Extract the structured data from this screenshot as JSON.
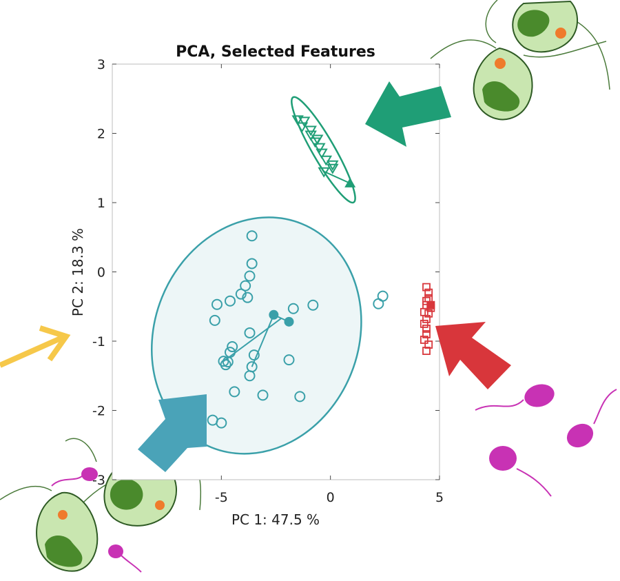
{
  "chart_data": {
    "type": "scatter",
    "title": "PCA, Selected Features",
    "xlabel": "PC 1: 47.5 %",
    "ylabel": "PC 2: 18.3 %",
    "xlim": [
      -10,
      5
    ],
    "ylim": [
      -3,
      3
    ],
    "xticks": [
      "-5",
      "0",
      "5"
    ],
    "yticks": [
      "3",
      "2",
      "1",
      "0",
      "-1",
      "-2",
      "-3"
    ],
    "grid": false,
    "colors": {
      "teal": "#3aa0a9",
      "green": "#1f9e76",
      "red": "#d8363b",
      "cell": "#c9e6b0",
      "chloroplast": "#4a8a2c",
      "eyespot": "#ef7b2c",
      "sperm": "#c832b4",
      "yellow": "#f6c84a",
      "arrow_blue": "#4aa3b8"
    },
    "series": [
      {
        "marker": "circle",
        "color": "#3aa0a9",
        "x": [
          -3.6,
          -3.6,
          -3.7,
          -3.9,
          -4.1,
          -4.6,
          -5.2,
          -5.3,
          -3.8,
          -1.7,
          -0.8,
          -3.7,
          -4.5,
          -4.9,
          -4.6,
          -4.7,
          -4.8,
          -3.6,
          -3.7,
          -3.5,
          -4.4,
          -3.1,
          -1.9,
          -1.4,
          -5.4,
          -5.0,
          2.2,
          2.4
        ],
        "y": [
          0.52,
          0.12,
          -0.06,
          -0.2,
          -0.32,
          -0.42,
          -0.47,
          -0.7,
          -0.37,
          -0.53,
          -0.48,
          -0.88,
          -1.08,
          -1.29,
          -1.16,
          -1.3,
          -1.34,
          -1.37,
          -1.5,
          -1.2,
          -1.73,
          -1.78,
          -1.27,
          -1.8,
          -2.14,
          -2.18,
          -0.46,
          -0.35
        ],
        "centroids": [
          {
            "x": -2.6,
            "y": -0.62
          },
          {
            "x": -1.9,
            "y": -0.72
          }
        ]
      },
      {
        "marker": "triangle",
        "color": "#1f9e76",
        "x": [
          -1.5,
          -1.2,
          -1.3,
          -0.9,
          -0.9,
          -0.6,
          -0.7,
          -0.5,
          -0.4,
          -0.2,
          0.1,
          -0.3,
          0.1
        ],
        "y": [
          2.2,
          2.18,
          2.1,
          2.05,
          1.98,
          1.92,
          1.88,
          1.8,
          1.72,
          1.62,
          1.55,
          1.45,
          1.5
        ],
        "centroid": {
          "x": 0.9,
          "y": 1.28
        }
      },
      {
        "marker": "square",
        "color": "#d8363b",
        "x": [
          4.4,
          4.5,
          4.5,
          4.4,
          4.3,
          4.6,
          4.5,
          4.4,
          4.3,
          4.4,
          4.4,
          4.3,
          4.5,
          4.4,
          4.4
        ],
        "y": [
          -0.22,
          -0.3,
          -0.38,
          -0.42,
          -0.58,
          -0.52,
          -0.6,
          -0.68,
          -0.75,
          -0.82,
          -0.9,
          -0.98,
          -1.05,
          -1.14,
          -0.48
        ],
        "centroid": {
          "x": 4.6,
          "y": -0.48
        }
      }
    ]
  }
}
